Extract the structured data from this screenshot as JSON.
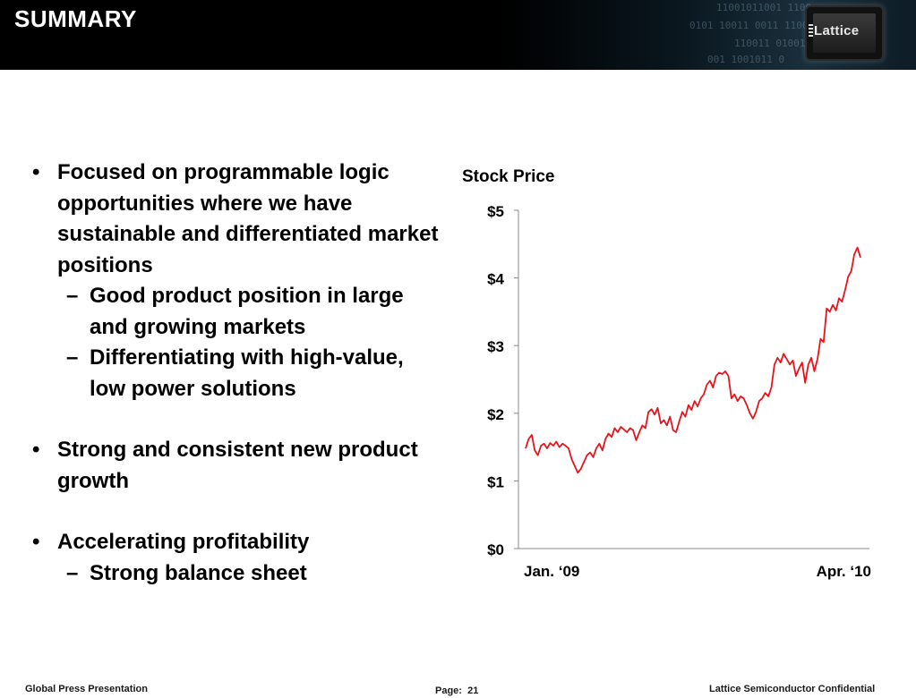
{
  "header": {
    "title": "SUMMARY",
    "logo_text": "Lattice"
  },
  "bullets": [
    {
      "text": "Focused on programmable logic opportunities where we have sustainable and differentiated market positions",
      "subs": [
        "Good product position in large and growing markets",
        "Differentiating with high-value, low power solutions"
      ]
    },
    {
      "text": "Strong and consistent new product growth",
      "subs": []
    },
    {
      "text": "Accelerating profitability",
      "subs": [
        "Strong balance sheet"
      ]
    }
  ],
  "bullet_mark": "•",
  "sub_mark": "–",
  "chart_data": {
    "type": "line",
    "title": "Stock Price",
    "xlabel": "",
    "ylabel": "",
    "x_tick_labels": [
      "Jan. ‘09",
      "Apr. ‘10"
    ],
    "y_tick_labels": [
      "$0",
      "$1",
      "$2",
      "$3",
      "$4",
      "$5"
    ],
    "ylim": [
      0,
      5
    ],
    "grid": false,
    "line_color": "#e8141c",
    "x_range": [
      "2009-01",
      "2010-04"
    ],
    "series": [
      {
        "values": [
          1.48,
          1.62,
          1.68,
          1.45,
          1.38,
          1.52,
          1.55,
          1.48,
          1.56,
          1.52,
          1.58,
          1.5,
          1.55,
          1.52,
          1.48,
          1.32,
          1.22,
          1.12,
          1.18,
          1.28,
          1.38,
          1.42,
          1.35,
          1.48,
          1.55,
          1.45,
          1.62,
          1.7,
          1.65,
          1.78,
          1.72,
          1.8,
          1.76,
          1.72,
          1.78,
          1.75,
          1.6,
          1.72,
          1.82,
          1.78,
          2.02,
          2.06,
          1.98,
          2.08,
          1.85,
          1.9,
          1.82,
          1.95,
          1.75,
          1.72,
          1.88,
          2.02,
          1.95,
          2.12,
          2.05,
          2.18,
          2.1,
          2.22,
          2.28,
          2.42,
          2.48,
          2.38,
          2.55,
          2.6,
          2.58,
          2.62,
          2.55,
          2.22,
          2.28,
          2.18,
          2.25,
          2.22,
          2.12,
          2.0,
          1.92,
          2.02,
          2.18,
          2.22,
          2.3,
          2.25,
          2.38,
          2.72,
          2.82,
          2.75,
          2.88,
          2.8,
          2.72,
          2.78,
          2.55,
          2.66,
          2.75,
          2.45,
          2.72,
          2.82,
          2.62,
          2.8,
          3.1,
          3.05,
          3.55,
          3.5,
          3.6,
          3.52,
          3.7,
          3.65,
          3.82,
          4.02,
          4.1,
          4.35,
          4.45,
          4.3
        ]
      }
    ]
  },
  "footer": {
    "left": "Global Press Presentation",
    "page_label": "Page:",
    "page_number": "21",
    "right": "Lattice Semiconductor Confidential"
  }
}
